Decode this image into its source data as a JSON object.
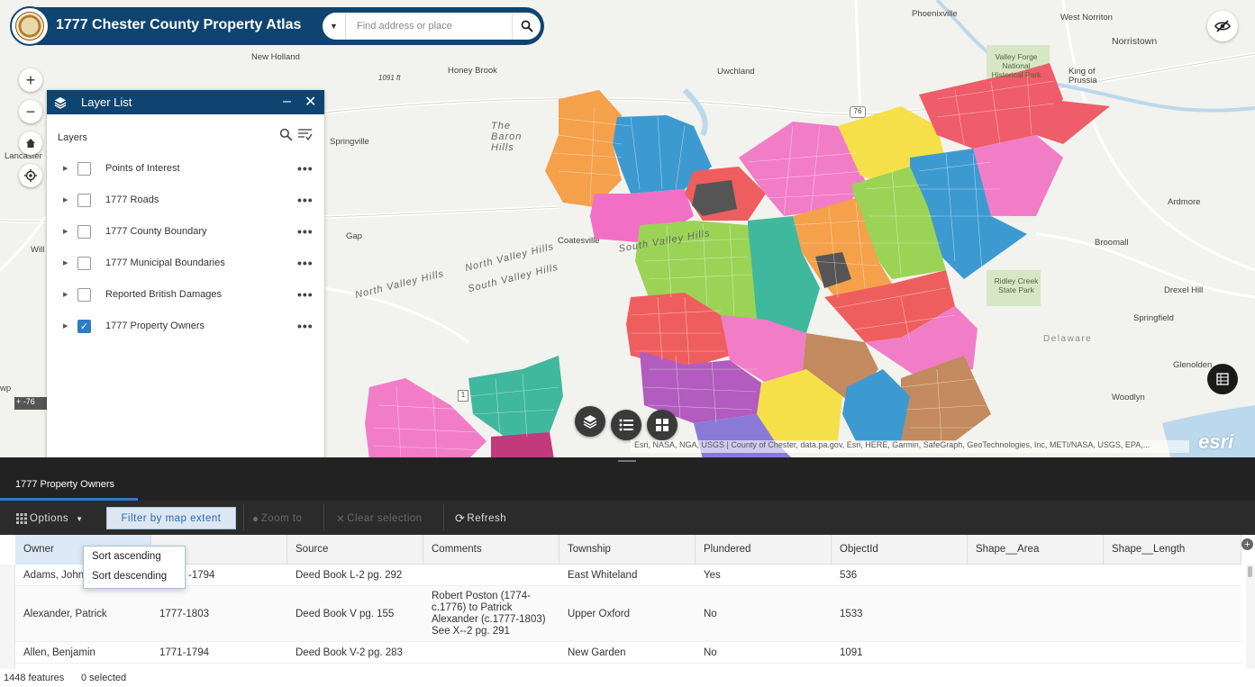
{
  "app": {
    "title": "1777 Chester County Property Atlas",
    "search_placeholder": "Find address or place"
  },
  "map": {
    "labels": {
      "phoenixville": "Phoenixville",
      "west_norriton": "West Norriton",
      "norristown": "Norristown",
      "new_holland": "New Holland",
      "honey_brook": "Honey Brook",
      "uwchland": "Uwchland",
      "valley_forge": "Valley Forge National Historical Park",
      "king_of_prussia": "King of Prussia",
      "springville": "Springville",
      "baron_hills": "The Baron Hills",
      "lancaster": "Lancaster",
      "gap": "Gap",
      "coatesville": "Coatesville",
      "south_valley_hills": "South Valley Hills",
      "north_valley_hills": "North Valley Hills",
      "north_valley_hills_2": "North Valley Hills",
      "south_valley_hills_2": "South Valley Hills",
      "ardmore": "Ardmore",
      "broomall": "Broomall",
      "ridley_creek": "Ridley Creek State Park",
      "drexel_hill": "Drexel Hill",
      "springfield": "Springfield",
      "delaware": "Delaware",
      "glenolden": "Glenolden",
      "woodlyn": "Woodlyn",
      "will": "Will",
      "wp": "wp",
      "elev": "1091 ft",
      "route_76": "76",
      "route_1": "1"
    },
    "scale_text": "-76",
    "attribution": "Esri, NASA, NGA, USGS | County of Chester, data.pa.gov, Esri, HERE, Garmin, SafeGraph, GeoTechnologies, Inc, METI/NASA, USGS, EPA,...",
    "esri": "esri"
  },
  "layer_list": {
    "title": "Layer List",
    "section_label": "Layers",
    "layers": [
      {
        "name": "Points of Interest",
        "checked": false
      },
      {
        "name": "1777 Roads",
        "checked": false
      },
      {
        "name": "1777 County Boundary",
        "checked": false
      },
      {
        "name": "1777 Municipal Boundaries",
        "checked": false
      },
      {
        "name": "Reported British Damages",
        "checked": false
      },
      {
        "name": "1777 Property Owners",
        "checked": true
      }
    ]
  },
  "table": {
    "tab": "1777 Property Owners",
    "toolbar": {
      "options": "Options",
      "filter": "Filter by map extent",
      "zoom": "Zoom to",
      "clear": "Clear selection",
      "refresh": "Refresh"
    },
    "columns": [
      "Owner",
      "",
      "Source",
      "Comments",
      "Township",
      "Plundered",
      "ObjectId",
      "Shape__Area",
      "Shape__Length"
    ],
    "rows": [
      {
        "owner": "Adams, John",
        "years": "-1794",
        "source": "Deed Book L-2 pg. 292",
        "comments": "",
        "township": "East Whiteland",
        "plundered": "Yes",
        "objectid": "536"
      },
      {
        "owner": "Alexander, Patrick",
        "years": "1777-1803",
        "source": "Deed Book V pg. 155",
        "comments": "Robert Poston (1774-c.1776) to Patrick Alexander (c.1777-1803) See X--2 pg. 291",
        "township": "Upper Oxford",
        "plundered": "No",
        "objectid": "1533"
      },
      {
        "owner": "Allen, Benjamin",
        "years": "1771-1794",
        "source": "Deed Book V-2 pg. 283",
        "comments": "",
        "township": "New Garden",
        "plundered": "No",
        "objectid": "1091"
      }
    ],
    "sort_menu": [
      "Sort ascending",
      "Sort descending"
    ],
    "footer": {
      "features": "1448 features",
      "selected": "0 selected"
    }
  },
  "colors": {
    "header": "#0f4470",
    "accent": "#2d7dc4"
  }
}
